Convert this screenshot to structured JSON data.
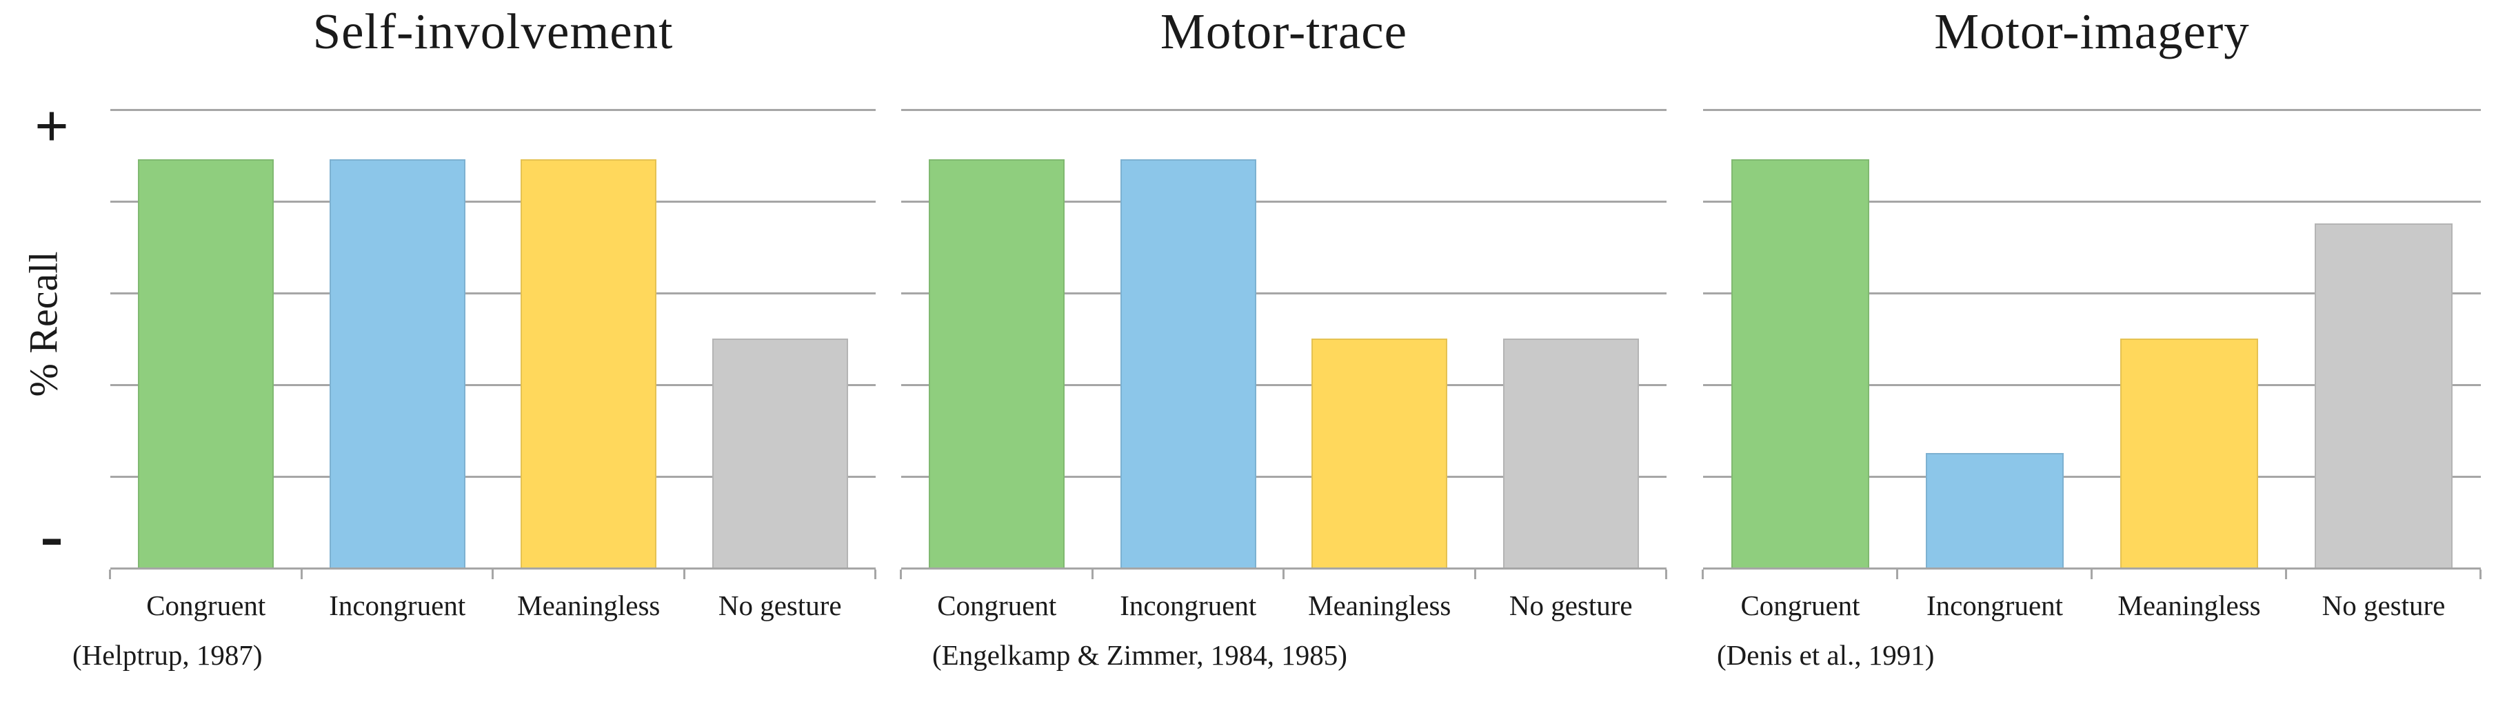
{
  "chart_data": {
    "type": "bar",
    "categories": [
      "Congruent",
      "Incongruent",
      "Meaningless",
      "No gesture"
    ],
    "ylabel": "% Recall",
    "y_axis_top_label": "+",
    "y_axis_bottom_label": "-",
    "ylim": [
      0,
      100
    ],
    "units": "relative recall (axis unlabeled, qualitative scale from - to +)",
    "grid": true,
    "gridline_interval_pct": 20,
    "legend_position": "none",
    "series_colors": {
      "Congruent": "#8FCE7E",
      "Incongruent": "#8CC6E9",
      "Meaningless": "#FFD85C",
      "No gesture": "#C9C9C9"
    },
    "colors": {
      "gridline": "#a6a6a6",
      "axis": "#a6a6a6",
      "text": "#1a1a1a",
      "background": "#ffffff"
    },
    "charts": [
      {
        "title": "Self-involvement",
        "citation": "(Helptrup, 1987)",
        "values": [
          89,
          89,
          89,
          50
        ]
      },
      {
        "title": "Motor-trace",
        "citation": "(Engelkamp & Zimmer, 1984, 1985)",
        "values": [
          89,
          89,
          50,
          50
        ]
      },
      {
        "title": "Motor-imagery",
        "citation": "(Denis et al., 1991)",
        "values": [
          89,
          25,
          50,
          75
        ]
      }
    ]
  }
}
